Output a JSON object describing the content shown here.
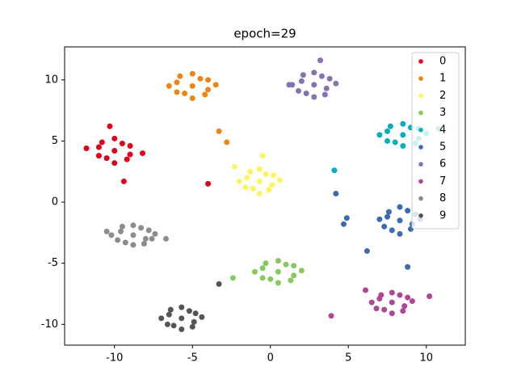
{
  "chart_data": {
    "type": "scatter",
    "title": "epoch=29",
    "xlim": [
      -13.2,
      12.5
    ],
    "ylim": [
      -11.7,
      12.7
    ],
    "xticks": [
      -10,
      -5,
      0,
      5,
      10
    ],
    "yticks": [
      -10,
      -5,
      0,
      5,
      10
    ],
    "legend": "upper right",
    "series": [
      {
        "name": "0",
        "color": "#e0001b",
        "x": [
          -10,
          -11,
          -9,
          -10.5,
          -9.5,
          -11.8,
          -8.2,
          -10,
          -10,
          -10.8,
          -9.2,
          -11,
          -9,
          -10.3,
          -9.4,
          -4
        ],
        "y": [
          4.2,
          4.5,
          3.9,
          3.6,
          4.8,
          4.4,
          4,
          5.2,
          3.2,
          4.9,
          3.5,
          3.8,
          4.6,
          6.2,
          1.7,
          1.5
        ]
      },
      {
        "name": "1",
        "color": "#ee8512",
        "x": [
          -5,
          -6,
          -4,
          -5.5,
          -4.5,
          -6.5,
          -3.5,
          -5,
          -5,
          -5.8,
          -4.2,
          -6,
          -4,
          -3.3,
          -2.8
        ],
        "y": [
          9.5,
          9.8,
          9.2,
          8.9,
          10.1,
          9.5,
          9.6,
          10.5,
          8.5,
          10.3,
          8.8,
          9,
          10,
          5.8,
          4.9
        ]
      },
      {
        "name": "2",
        "color": "#fdf45f",
        "x": [
          -0.7,
          -1.5,
          0.1,
          -1.1,
          -0.3,
          -2,
          0.6,
          -0.7,
          -0.7,
          -1.3,
          -0.1,
          -1.6,
          0.2,
          -2.3,
          -0.5
        ],
        "y": [
          1.7,
          2,
          1.4,
          1.1,
          2.3,
          1.7,
          1.8,
          2.7,
          0.7,
          2.5,
          1,
          1.2,
          2.2,
          2.9,
          3.8
        ]
      },
      {
        "name": "3",
        "color": "#88c95f",
        "x": [
          0.5,
          -0.5,
          1.5,
          0,
          1,
          -1,
          2,
          0.5,
          0.5,
          -0.3,
          1.3,
          -0.5,
          1.5,
          -2.4
        ],
        "y": [
          -5.7,
          -5.4,
          -6,
          -6.3,
          -5.1,
          -5.7,
          -5.6,
          -4.8,
          -6.6,
          -5,
          -6.4,
          -6.2,
          -5.2,
          -6.2
        ]
      },
      {
        "name": "4",
        "color": "#00b1bb",
        "x": [
          8.5,
          7.5,
          9.5,
          8,
          9,
          7,
          10,
          8.5,
          8.5,
          7.7,
          9.3,
          7.5,
          9.5,
          4.1,
          10.8
        ],
        "y": [
          5.5,
          5.8,
          5.2,
          4.9,
          6.1,
          5.5,
          5.6,
          6.4,
          4.6,
          6.2,
          4.8,
          5,
          6,
          2.6,
          6
        ]
      },
      {
        "name": "5",
        "color": "#3d6bb1",
        "x": [
          8.3,
          7.5,
          9.1,
          7.8,
          8.8,
          7,
          9.6,
          8.3,
          8.3,
          7.6,
          9,
          7.3,
          9.3,
          4.2,
          4.9,
          4.7,
          6.2,
          8.8
        ],
        "y": [
          -1.5,
          -1.2,
          -1.8,
          -2.3,
          -0.7,
          -1.4,
          -1.4,
          -0.4,
          -2.6,
          -0.8,
          -2.2,
          -2,
          -1,
          0.7,
          -1.3,
          -1.8,
          -4,
          -5.3
        ]
      },
      {
        "name": "6",
        "color": "#8572b1",
        "x": [
          2.8,
          2,
          3.6,
          2.3,
          3.3,
          1.4,
          4.2,
          2.8,
          2.8,
          2.1,
          3.5,
          1.8,
          3.8,
          3.2,
          1.2
        ],
        "y": [
          9.6,
          9.9,
          9.3,
          8.9,
          10.3,
          9.6,
          9.7,
          10.6,
          8.6,
          10.4,
          8.8,
          9.1,
          10.1,
          11.6,
          9.6
        ]
      },
      {
        "name": "7",
        "color": "#b04595",
        "x": [
          7.8,
          7,
          8.6,
          7.3,
          8.3,
          6.5,
          9.1,
          7.8,
          7.8,
          7.1,
          8.5,
          6.8,
          8.8,
          3.9,
          10.2,
          6.1
        ],
        "y": [
          -8.2,
          -7.9,
          -8.5,
          -8.8,
          -7.6,
          -8.2,
          -8.1,
          -7.4,
          -9.1,
          -7.6,
          -8.9,
          -8.7,
          -7.8,
          -9.3,
          -7.7,
          -7.2
        ]
      },
      {
        "name": "8",
        "color": "#8c8c8c",
        "x": [
          -8.8,
          -9.6,
          -8,
          -9.3,
          -8.3,
          -10.2,
          -7.4,
          -8.8,
          -8.8,
          -9.5,
          -8.1,
          -9.8,
          -7.8,
          -10.5,
          -7.6,
          -6.7
        ],
        "y": [
          -2.7,
          -2.4,
          -3,
          -3.3,
          -2.1,
          -2.7,
          -2.6,
          -1.9,
          -3.5,
          -2,
          -3.4,
          -3.1,
          -2.3,
          -2.4,
          -3,
          -3
        ]
      },
      {
        "name": "9",
        "color": "#555555",
        "x": [
          -5.7,
          -6.5,
          -4.9,
          -6.2,
          -5.2,
          -7,
          -4.4,
          -5.7,
          -5.7,
          -6.4,
          -5,
          -6.6,
          -4.8,
          -3.3
        ],
        "y": [
          -9.5,
          -9.2,
          -9.8,
          -10.1,
          -8.9,
          -9.5,
          -9.4,
          -8.6,
          -10.4,
          -8.8,
          -10.2,
          -10,
          -9.1,
          -6.7
        ]
      }
    ]
  }
}
